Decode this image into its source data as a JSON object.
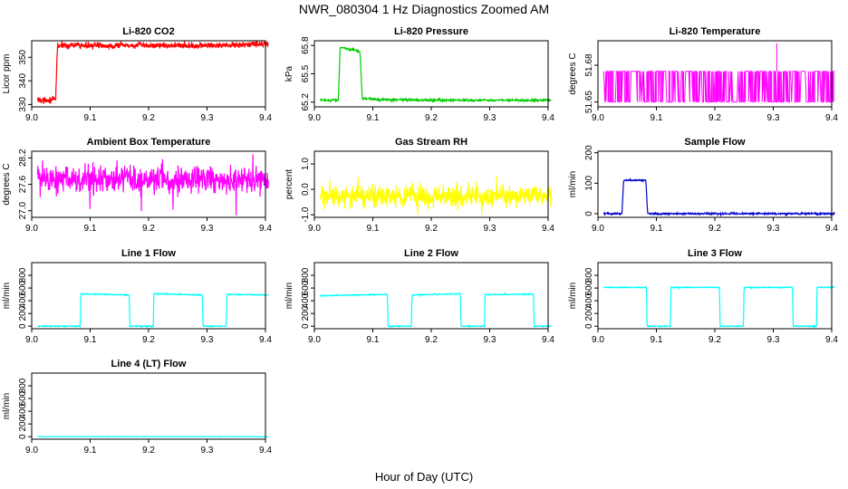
{
  "figure": {
    "title": "NWR_080304  1 Hz Diagnostics Zoomed AM",
    "xlabel": "Hour of Day (UTC)"
  },
  "chart_data": [
    {
      "id": "co2",
      "type": "line",
      "title": "Li-820 CO2",
      "ylabel": "Licor ppm",
      "color": "#ff0000",
      "xlim": [
        9.0,
        9.4
      ],
      "ylim": [
        329,
        357
      ],
      "xticks": [
        "9.0",
        "9.1",
        "9.2",
        "9.3",
        "9.4"
      ],
      "yticks": [
        {
          "v": 330,
          "label": "330"
        },
        {
          "v": 340,
          "label": "340"
        },
        {
          "v": 350,
          "label": "350"
        }
      ],
      "series": [
        {
          "x": [
            9.01,
            9.041,
            9.044,
            9.1,
            9.2,
            9.3,
            9.405
          ],
          "y": [
            332,
            332,
            355,
            355,
            355,
            355,
            355.5
          ],
          "noise": 0.9
        }
      ]
    },
    {
      "id": "pressure",
      "type": "line",
      "title": "Li-820 Pressure",
      "ylabel": "kPa",
      "color": "#00cc00",
      "xlim": [
        9.0,
        9.4
      ],
      "ylim": [
        65.15,
        65.85
      ],
      "xticks": [
        "9.0",
        "9.1",
        "9.2",
        "9.3",
        "9.4"
      ],
      "yticks": [
        {
          "v": 65.2,
          "label": "65.2"
        },
        {
          "v": 65.5,
          "label": "65.5"
        },
        {
          "v": 65.8,
          "label": "65.8"
        }
      ],
      "series": [
        {
          "x": [
            9.01,
            9.041,
            9.044,
            9.06,
            9.078,
            9.082,
            9.1,
            9.2,
            9.3,
            9.405
          ],
          "y": [
            65.22,
            65.22,
            65.78,
            65.76,
            65.74,
            65.24,
            65.23,
            65.22,
            65.22,
            65.22
          ],
          "noise": 0.008
        }
      ]
    },
    {
      "id": "temperature",
      "type": "line",
      "title": "Li-820 Temperature",
      "ylabel": "degrees C",
      "color": "#ff00ff",
      "xlim": [
        9.0,
        9.4
      ],
      "ylim": [
        51.646,
        51.7
      ],
      "xticks": [
        "9.0",
        "9.1",
        "9.2",
        "9.3",
        "9.4"
      ],
      "yticks": [
        {
          "v": 51.65,
          "label": "51.65"
        },
        {
          "v": 51.68,
          "label": "51.68"
        }
      ],
      "series": [
        {
          "x": [
            9.01,
            9.405
          ],
          "y": [
            51.65,
            51.675
          ],
          "mode": "toggle",
          "spike": {
            "x": 9.306,
            "y": 51.698
          }
        }
      ]
    },
    {
      "id": "ambient",
      "type": "line",
      "title": "Ambient Box Temperature",
      "ylabel": "degrees C",
      "color": "#ff00ff",
      "xlim": [
        9.0,
        9.4
      ],
      "ylim": [
        26.85,
        28.35
      ],
      "xticks": [
        "9.0",
        "9.1",
        "9.2",
        "9.3",
        "9.4"
      ],
      "yticks": [
        {
          "v": 27.0,
          "label": "27.0"
        },
        {
          "v": 27.6,
          "label": "27.6"
        },
        {
          "v": 28.2,
          "label": "28.2"
        }
      ],
      "series": [
        {
          "x": [
            9.01,
            9.405
          ],
          "y": [
            27.7,
            27.7
          ],
          "noise": 0.22
        }
      ]
    },
    {
      "id": "rh",
      "type": "line",
      "title": "Gas Stream RH",
      "ylabel": "percent",
      "color": "#ffff00",
      "xlim": [
        9.0,
        9.4
      ],
      "ylim": [
        -1.1,
        1.5
      ],
      "xticks": [
        "9.0",
        "9.1",
        "9.2",
        "9.3",
        "9.4"
      ],
      "yticks": [
        {
          "v": -1.0,
          "label": "-1.0"
        },
        {
          "v": 0.0,
          "label": "0.0"
        },
        {
          "v": 1.0,
          "label": "1.0"
        }
      ],
      "series": [
        {
          "x": [
            9.01,
            9.405
          ],
          "y": [
            -0.25,
            -0.25
          ],
          "noise": 0.3
        }
      ]
    },
    {
      "id": "sample",
      "type": "line",
      "title": "Sample Flow",
      "ylabel": "ml/min",
      "color": "#0000cc",
      "xlim": [
        9.0,
        9.4
      ],
      "ylim": [
        -12,
        205
      ],
      "xticks": [
        "9.0",
        "9.1",
        "9.2",
        "9.3",
        "9.4"
      ],
      "yticks": [
        {
          "v": 0,
          "label": "0"
        },
        {
          "v": 100,
          "label": "100"
        },
        {
          "v": 200,
          "label": "200"
        }
      ],
      "series": [
        {
          "x": [
            9.01,
            9.041,
            9.044,
            9.082,
            9.085,
            9.405
          ],
          "y": [
            0,
            0,
            110,
            110,
            0,
            0
          ],
          "noise": 2
        }
      ]
    },
    {
      "id": "line1",
      "type": "line",
      "title": "Line 1 Flow",
      "ylabel": "ml/min",
      "color": "#00ffff",
      "xlim": [
        9.0,
        9.4
      ],
      "ylim": [
        -40,
        1000
      ],
      "xticks": [
        "9.0",
        "9.1",
        "9.2",
        "9.3",
        "9.4"
      ],
      "yticks": [
        {
          "v": 0,
          "label": "0"
        },
        {
          "v": 200,
          "label": "200"
        },
        {
          "v": 400,
          "label": "400"
        },
        {
          "v": 600,
          "label": "600"
        },
        {
          "v": 800,
          "label": "800"
        }
      ],
      "series": [
        {
          "x": [
            9.01,
            9.083,
            9.084,
            9.167,
            9.168,
            9.208,
            9.209,
            9.292,
            9.293,
            9.333,
            9.334,
            9.405
          ],
          "y": [
            0,
            0,
            510,
            490,
            0,
            0,
            510,
            490,
            0,
            0,
            500,
            490
          ],
          "noise": 5
        }
      ]
    },
    {
      "id": "line2",
      "type": "line",
      "title": "Line 2 Flow",
      "ylabel": "ml/min",
      "color": "#00ffff",
      "xlim": [
        9.0,
        9.4
      ],
      "ylim": [
        -40,
        1000
      ],
      "xticks": [
        "9.0",
        "9.1",
        "9.2",
        "9.3",
        "9.4"
      ],
      "yticks": [
        {
          "v": 0,
          "label": "0"
        },
        {
          "v": 200,
          "label": "200"
        },
        {
          "v": 400,
          "label": "400"
        },
        {
          "v": 600,
          "label": "600"
        },
        {
          "v": 800,
          "label": "800"
        }
      ],
      "series": [
        {
          "x": [
            9.01,
            9.125,
            9.126,
            9.166,
            9.167,
            9.25,
            9.251,
            9.291,
            9.292,
            9.375,
            9.376,
            9.405
          ],
          "y": [
            480,
            500,
            0,
            0,
            490,
            510,
            0,
            0,
            495,
            505,
            0,
            0
          ],
          "noise": 5
        }
      ]
    },
    {
      "id": "line3",
      "type": "line",
      "title": "Line 3 Flow",
      "ylabel": "ml/min",
      "color": "#00ffff",
      "xlim": [
        9.0,
        9.4
      ],
      "ylim": [
        -40,
        1000
      ],
      "xticks": [
        "9.0",
        "9.1",
        "9.2",
        "9.3",
        "9.4"
      ],
      "yticks": [
        {
          "v": 0,
          "label": "0"
        },
        {
          "v": 200,
          "label": "200"
        },
        {
          "v": 400,
          "label": "400"
        },
        {
          "v": 600,
          "label": "600"
        },
        {
          "v": 800,
          "label": "800"
        }
      ],
      "series": [
        {
          "x": [
            9.01,
            9.083,
            9.084,
            9.124,
            9.125,
            9.208,
            9.209,
            9.249,
            9.25,
            9.333,
            9.334,
            9.374,
            9.375,
            9.405
          ],
          "y": [
            610,
            610,
            0,
            0,
            610,
            610,
            0,
            0,
            610,
            610,
            0,
            0,
            610,
            610
          ],
          "noise": 5
        }
      ]
    },
    {
      "id": "line4",
      "type": "line",
      "title": "Line 4 (LT) Flow",
      "ylabel": "ml/min",
      "color": "#00ffff",
      "xlim": [
        9.0,
        9.4
      ],
      "ylim": [
        -40,
        1000
      ],
      "xticks": [
        "9.0",
        "9.1",
        "9.2",
        "9.3",
        "9.4"
      ],
      "yticks": [
        {
          "v": 0,
          "label": "0"
        },
        {
          "v": 200,
          "label": "200"
        },
        {
          "v": 400,
          "label": "400"
        },
        {
          "v": 600,
          "label": "600"
        },
        {
          "v": 800,
          "label": "800"
        }
      ],
      "series": [
        {
          "x": [
            9.01,
            9.405
          ],
          "y": [
            0,
            0
          ],
          "noise": 1.5
        }
      ]
    }
  ]
}
